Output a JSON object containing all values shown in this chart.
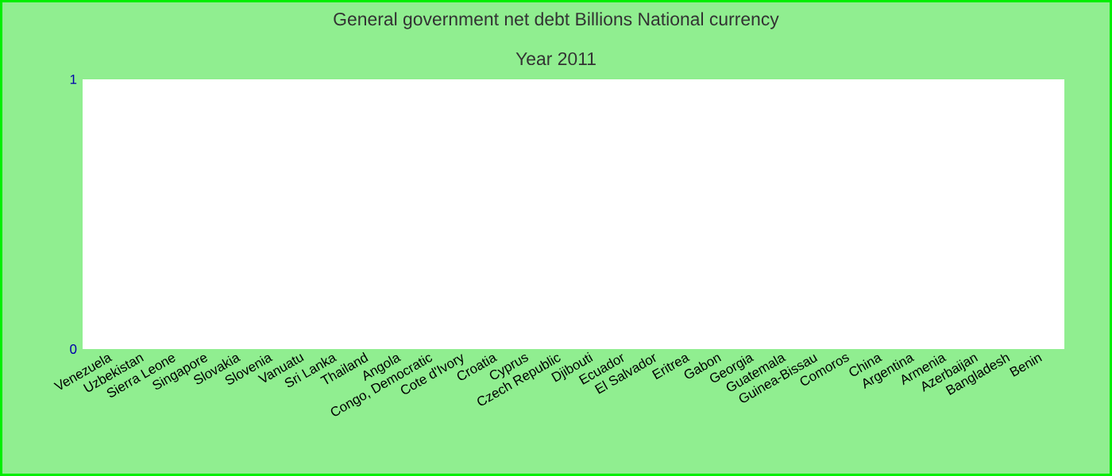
{
  "chart_data": {
    "type": "bar",
    "title": "General government net debt Billions National currency",
    "subtitle": "Year 2011",
    "categories": [
      "Venezuela",
      "Uzbekistan",
      "Sierra Leone",
      "Singapore",
      "Slovakia",
      "Slovenia",
      "Vanuatu",
      "Sri Lanka",
      "Thailand",
      "Angola",
      "Congo, Democratic",
      "Cote d'Ivory",
      "Croatia",
      "Cyprus",
      "Czech Republic",
      "Djibouti",
      "Ecuador",
      "El Salvador",
      "Eritrea",
      "Gabon",
      "Georgia",
      "Guatemala",
      "Guinea-Bissau",
      "Comoros",
      "China",
      "Argentina",
      "Armenia",
      "Azerbaijan",
      "Bangladesh",
      "Benin"
    ],
    "values": [
      null,
      null,
      null,
      null,
      null,
      null,
      null,
      null,
      null,
      null,
      null,
      null,
      null,
      null,
      null,
      null,
      null,
      null,
      null,
      null,
      null,
      null,
      null,
      null,
      null,
      null,
      null,
      null,
      null,
      null
    ],
    "ylim": [
      0,
      1
    ],
    "yticks": [
      0,
      1
    ]
  }
}
